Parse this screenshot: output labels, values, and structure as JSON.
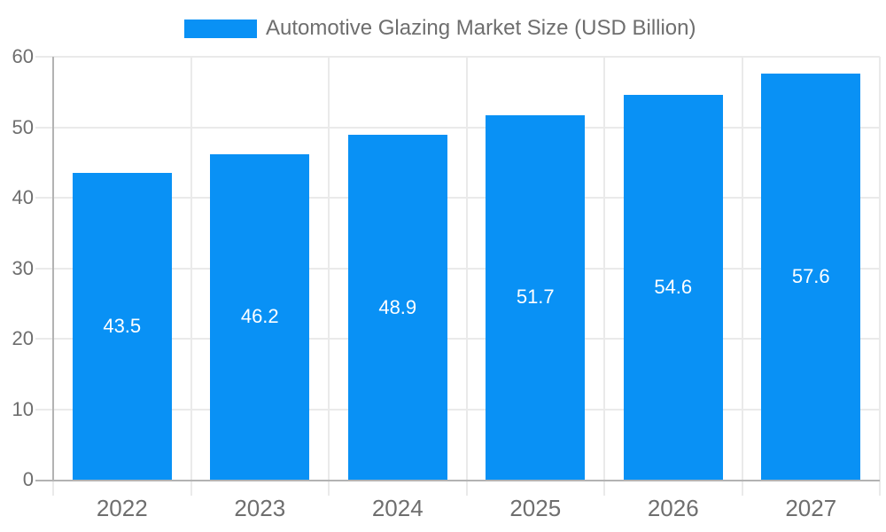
{
  "chart_data": {
    "type": "bar",
    "title": "Automotive Glazing Market Size (USD Billion)",
    "legend": [
      "Automotive Glazing Market Size (USD Billion)"
    ],
    "legend_position": "top",
    "categories": [
      "2022",
      "2023",
      "2024",
      "2025",
      "2026",
      "2027"
    ],
    "values": [
      43.5,
      46.2,
      48.9,
      51.7,
      54.6,
      57.6
    ],
    "value_labels": [
      "43.5",
      "46.2",
      "48.9",
      "51.7",
      "54.6",
      "57.6"
    ],
    "xlabel": "",
    "ylabel": "",
    "ylim": [
      0,
      60
    ],
    "yticks": [
      0,
      10,
      20,
      30,
      40,
      50,
      60
    ],
    "grid": true,
    "bar_color": "#0991f5",
    "value_label_color": "#ffffff",
    "axis_text_color": "#6e6e6e"
  }
}
